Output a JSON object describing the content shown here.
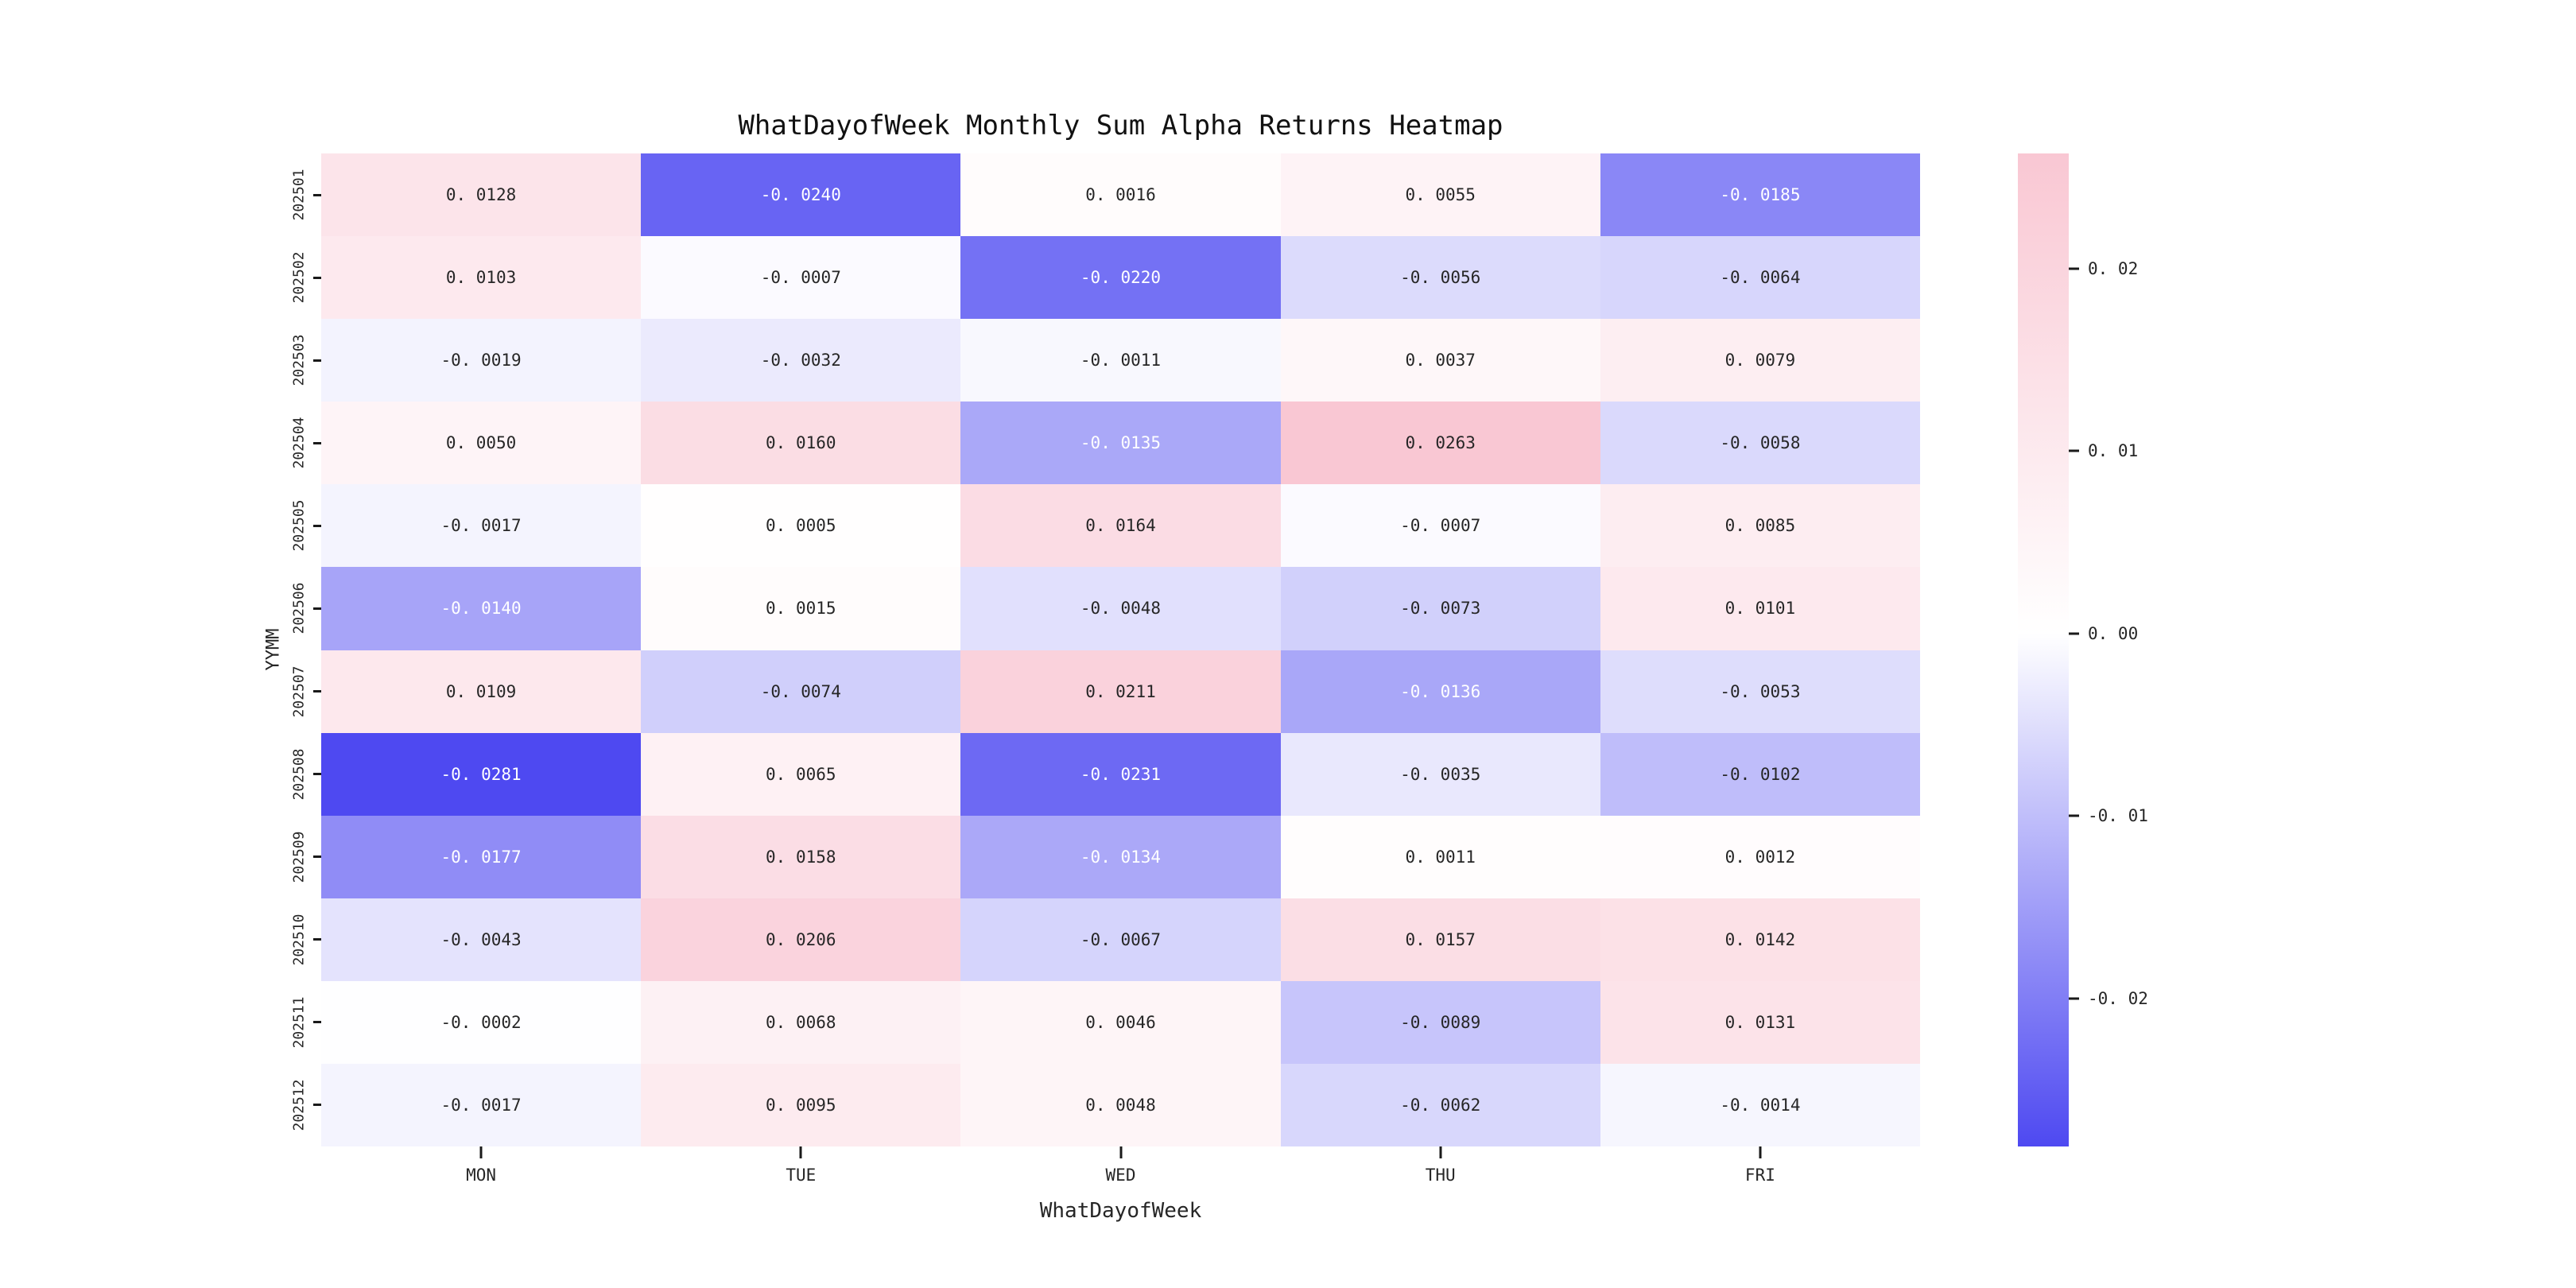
{
  "title": "WhatDayofWeek Monthly Sum Alpha Returns Heatmap",
  "chart_data": {
    "type": "heatmap",
    "title": "WhatDayofWeek Monthly Sum Alpha Returns Heatmap",
    "xlabel": "WhatDayofWeek",
    "ylabel": "YYMM",
    "columns": [
      "MON",
      "TUE",
      "WED",
      "THU",
      "FRI"
    ],
    "rows": [
      "202501",
      "202502",
      "202503",
      "202504",
      "202505",
      "202506",
      "202507",
      "202508",
      "202509",
      "202510",
      "202511",
      "202512"
    ],
    "values": [
      [
        0.0128,
        -0.024,
        0.0016,
        0.0055,
        -0.0185
      ],
      [
        0.0103,
        -0.0007,
        -0.022,
        -0.0056,
        -0.0064
      ],
      [
        -0.0019,
        -0.0032,
        -0.0011,
        0.0037,
        0.0079
      ],
      [
        0.005,
        0.016,
        -0.0135,
        0.0263,
        -0.0058
      ],
      [
        -0.0017,
        0.0005,
        0.0164,
        -0.0007,
        0.0085
      ],
      [
        -0.014,
        0.0015,
        -0.0048,
        -0.0073,
        0.0101
      ],
      [
        0.0109,
        -0.0074,
        0.0211,
        -0.0136,
        -0.0053
      ],
      [
        -0.0281,
        0.0065,
        -0.0231,
        -0.0035,
        -0.0102
      ],
      [
        -0.0177,
        0.0158,
        -0.0134,
        0.0011,
        0.0012
      ],
      [
        -0.0043,
        0.0206,
        -0.0067,
        0.0157,
        0.0142
      ],
      [
        -0.0002,
        0.0068,
        0.0046,
        -0.0089,
        0.0131
      ],
      [
        -0.0017,
        0.0095,
        0.0048,
        -0.0062,
        -0.0014
      ]
    ],
    "vmin": -0.0281,
    "vmax": 0.0263,
    "value_decimals": 4,
    "colorbar_ticks": [
      0.02,
      0.01,
      0.0,
      -0.01,
      -0.02
    ],
    "colorbar_tick_decimals": 2,
    "colors": {
      "negative_end": "#4E49F1",
      "midpoint": "#FFFFFF",
      "positive_end": "#F9C7D3",
      "annotation_dark": "#262626",
      "annotation_light": "#FFFFFF"
    },
    "legend_position": "right",
    "grid": false
  }
}
